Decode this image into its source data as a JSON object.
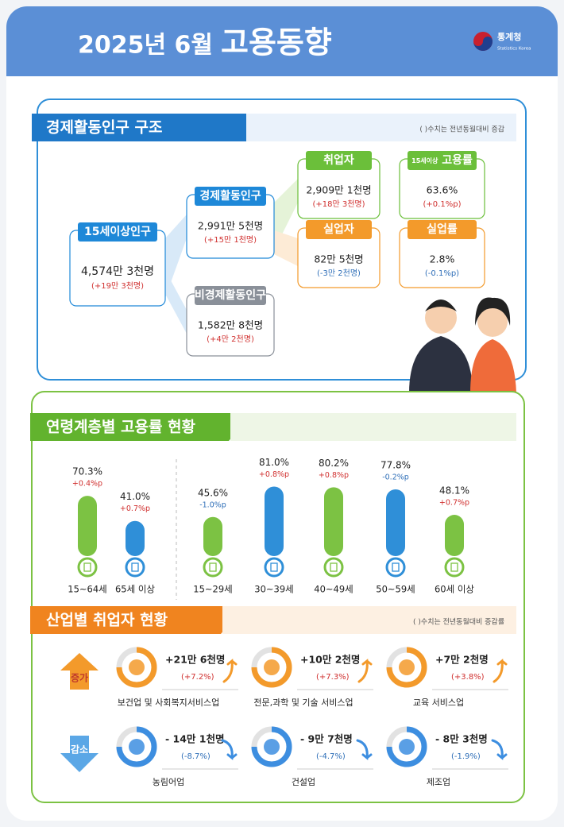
{
  "header": {
    "title_year": "2025년 6월",
    "title_main": "고용동향",
    "logo": "통계청",
    "logo_en": "Statistics Korea"
  },
  "structure": {
    "title": "경제활동인구 구조",
    "note": "( )수치는 전년동월대비 증감",
    "nodes": [
      {
        "label": "15세이상인구",
        "value": "4,574만 3천명",
        "change": "(+19만 3천명)"
      },
      {
        "label": "경제활동인구",
        "value": "2,991만 5천명",
        "change": "(+15만 1천명)"
      },
      {
        "label": "비경제활동인구",
        "value": "1,582만 8천명",
        "change": "(+4만 2천명)"
      },
      {
        "label": "취업자",
        "value": "2,909만 1천명",
        "change": "(+18만 3천명)"
      },
      {
        "label_prefix": "15세이상",
        "label": "고용률",
        "value": "63.6%",
        "change": "(+0.1%p)"
      },
      {
        "label": "실업자",
        "value": "82만 5천명",
        "change": "(-3만 2천명)"
      },
      {
        "label": "실업률",
        "value": "2.8%",
        "change": "(-0.1%p)"
      }
    ]
  },
  "chart_data": {
    "type": "bar",
    "title": "연령계층별 고용률 현황",
    "categories": [
      "15~64세",
      "65세 이상",
      "15~29세",
      "30~39세",
      "40~49세",
      "50~59세",
      "60세 이상"
    ],
    "values": [
      70.3,
      41.0,
      45.6,
      81.0,
      80.2,
      77.8,
      48.1
    ],
    "value_labels": [
      "70.3%",
      "41.0%",
      "45.6%",
      "81.0%",
      "80.2%",
      "77.8%",
      "48.1%"
    ],
    "changes": [
      "+0.4%p",
      "+0.7%p",
      "-1.0%p",
      "+0.8%p",
      "+0.8%p",
      "-0.2%p",
      "+0.7%p"
    ],
    "colors": [
      "#7cc243",
      "#2f8fd8",
      "#7cc243",
      "#2f8fd8",
      "#7cc243",
      "#2f8fd8",
      "#7cc243"
    ]
  },
  "industry": {
    "title": "산업별 취업자 현황",
    "note": "( )수치는 전년동월대비 증감률",
    "groups": [
      {
        "name": "증가",
        "items": [
          {
            "name": "보건업 및 사회복지서비스업",
            "value": "+21만 6천명",
            "rate": "(+7.2%)"
          },
          {
            "name": "전문,과학 및 기술 서비스업",
            "value": "+10만 2천명",
            "rate": "(+7.3%)"
          },
          {
            "name": "교육 서비스업",
            "value": "+7만 2천명",
            "rate": "(+3.8%)"
          }
        ]
      },
      {
        "name": "감소",
        "items": [
          {
            "name": "농림어업",
            "value": "- 14만 1천명",
            "rate": "(-8.7%)"
          },
          {
            "name": "건설업",
            "value": "- 9만 7천명",
            "rate": "(-4.7%)"
          },
          {
            "name": "제조업",
            "value": "- 8만 3천명",
            "rate": "(-1.9%)"
          }
        ]
      }
    ]
  }
}
